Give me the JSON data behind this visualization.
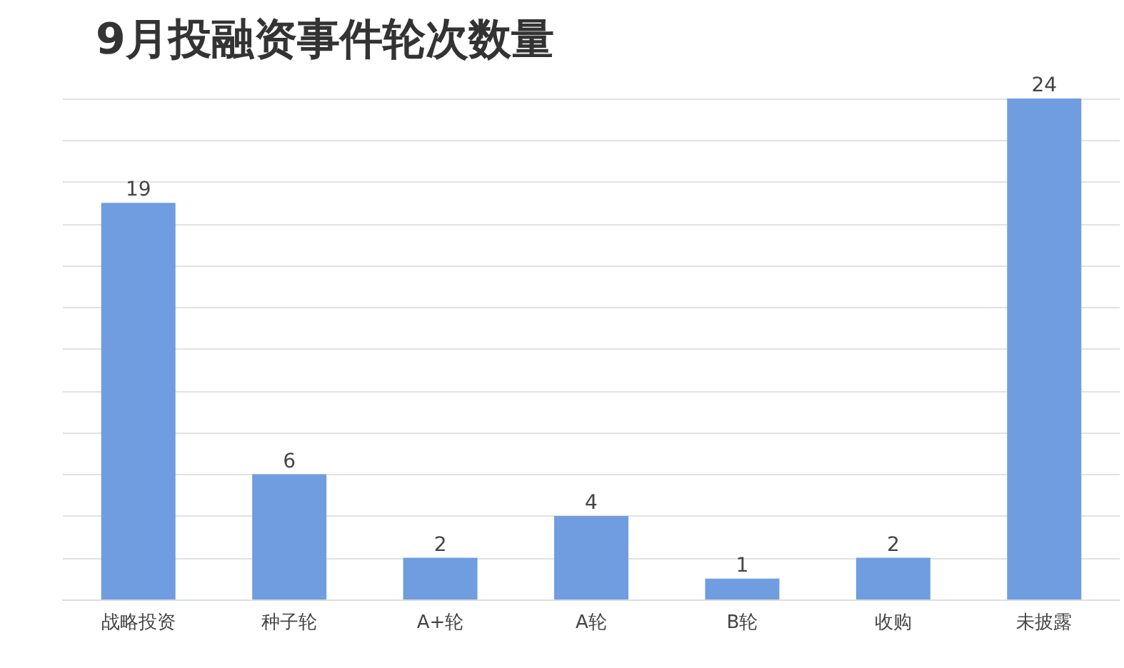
{
  "chart_data": {
    "type": "bar",
    "title": "9月投融资事件轮次数量",
    "categories": [
      "战略投资",
      "种子轮",
      "A+轮",
      "A轮",
      "B轮",
      "收购",
      "未披露"
    ],
    "values": [
      19,
      6,
      2,
      4,
      1,
      2,
      24
    ],
    "color": "#6f9de0",
    "ylim": [
      0,
      24
    ],
    "yticks": [
      {
        "value": 0,
        "label": null
      },
      {
        "value": 2,
        "label": null
      },
      {
        "value": 4,
        "label": null
      },
      {
        "value": 6,
        "label": null
      },
      {
        "value": 8,
        "label": null
      },
      {
        "value": 10,
        "label": null
      },
      {
        "value": 12,
        "label": null
      },
      {
        "value": 14,
        "label": null
      },
      {
        "value": 16,
        "label": null
      },
      {
        "value": 18,
        "label": null
      },
      {
        "value": 20,
        "label": null
      },
      {
        "value": 22,
        "label": null
      },
      {
        "value": 24,
        "label": null
      }
    ],
    "tick_labels": "x",
    "grid": "y",
    "data_labels": true
  }
}
